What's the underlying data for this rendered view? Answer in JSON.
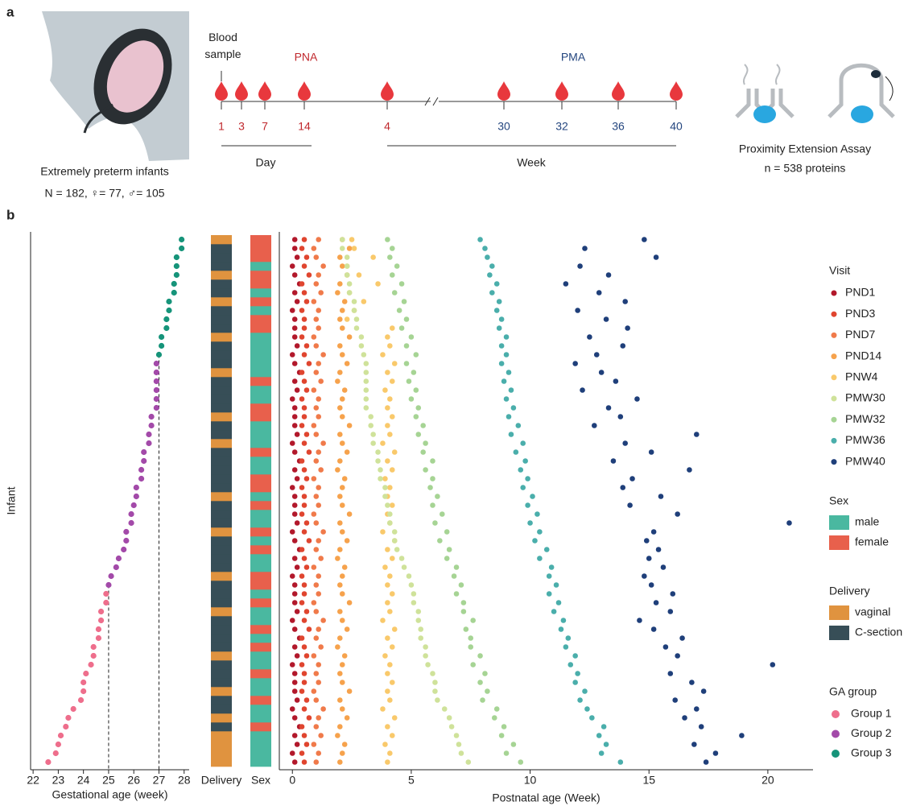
{
  "panels": {
    "a": {
      "label": "a",
      "infants": {
        "caption": "Extremely preterm infants",
        "counts": "N = 182, ♀= 77, ♂= 105"
      },
      "timeline": {
        "blood_sample": "Blood sample",
        "pna": "PNA",
        "pma": "PMA",
        "pna_points": [
          1,
          3,
          7,
          14,
          4
        ],
        "pma_points": [
          30,
          32,
          36,
          40
        ],
        "day": "Day",
        "week": "Week"
      },
      "assay": {
        "name": "Proximity Extension Assay",
        "count": "n = 538 proteins"
      }
    },
    "b": {
      "label": "b"
    }
  },
  "chart_data": [
    {
      "type": "dot-strip",
      "xlabel": "Gestational age (week)",
      "ylabel": "Infant",
      "xlim": [
        21.9,
        28.2
      ],
      "xticks": [
        22,
        23,
        24,
        25,
        26,
        27,
        28
      ],
      "reference_lines": [
        25,
        27
      ],
      "legend_title": "GA group",
      "groups": [
        {
          "name": "Group 1",
          "color": "#ee6e8c"
        },
        {
          "name": "Group 2",
          "color": "#a34aa9"
        },
        {
          "name": "Group 3",
          "color": "#16947a"
        }
      ],
      "x": [
        22.6,
        22.9,
        23.0,
        23.1,
        23.3,
        23.4,
        23.6,
        23.9,
        24.0,
        24.0,
        24.1,
        24.3,
        24.4,
        24.4,
        24.6,
        24.6,
        24.7,
        24.7,
        24.9,
        24.9,
        25.0,
        25.1,
        25.3,
        25.4,
        25.6,
        25.7,
        25.7,
        25.9,
        25.9,
        26.0,
        26.1,
        26.1,
        26.3,
        26.3,
        26.4,
        26.4,
        26.6,
        26.6,
        26.7,
        26.7,
        26.9,
        26.9,
        26.9,
        26.9,
        26.9,
        26.9,
        27.0,
        27.1,
        27.1,
        27.3,
        27.3,
        27.4,
        27.4,
        27.6,
        27.6,
        27.7,
        27.7,
        27.7,
        27.9,
        27.9
      ],
      "group": [
        "Group 1",
        "Group 1",
        "Group 1",
        "Group 1",
        "Group 1",
        "Group 1",
        "Group 1",
        "Group 1",
        "Group 1",
        "Group 1",
        "Group 1",
        "Group 1",
        "Group 1",
        "Group 1",
        "Group 1",
        "Group 1",
        "Group 1",
        "Group 1",
        "Group 1",
        "Group 1",
        "Group 2",
        "Group 2",
        "Group 2",
        "Group 2",
        "Group 2",
        "Group 2",
        "Group 2",
        "Group 2",
        "Group 2",
        "Group 2",
        "Group 2",
        "Group 2",
        "Group 2",
        "Group 2",
        "Group 2",
        "Group 2",
        "Group 2",
        "Group 2",
        "Group 2",
        "Group 2",
        "Group 2",
        "Group 2",
        "Group 2",
        "Group 2",
        "Group 2",
        "Group 2",
        "Group 3",
        "Group 3",
        "Group 3",
        "Group 3",
        "Group 3",
        "Group 3",
        "Group 3",
        "Group 3",
        "Group 3",
        "Group 3",
        "Group 3",
        "Group 3",
        "Group 3",
        "Group 3"
      ]
    },
    {
      "type": "tile",
      "title": "Delivery",
      "legend": [
        {
          "name": "vaginal",
          "color": "#e0933f"
        },
        {
          "name": "C-section",
          "color": "#374e57"
        }
      ],
      "values": [
        "vaginal",
        "vaginal",
        "vaginal",
        "vaginal",
        "C-section",
        "vaginal",
        "C-section",
        "C-section",
        "vaginal",
        "C-section",
        "C-section",
        "C-section",
        "vaginal",
        "C-section",
        "C-section",
        "C-section",
        "C-section",
        "vaginal",
        "C-section",
        "C-section",
        "C-section",
        "vaginal",
        "C-section",
        "C-section",
        "C-section",
        "C-section",
        "vaginal",
        "C-section",
        "C-section",
        "C-section",
        "vaginal",
        "C-section",
        "C-section",
        "C-section",
        "C-section",
        "C-section",
        "vaginal",
        "C-section",
        "C-section",
        "vaginal",
        "C-section",
        "C-section",
        "C-section",
        "C-section",
        "vaginal",
        "C-section",
        "C-section",
        "C-section",
        "vaginal",
        "C-section",
        "C-section",
        "C-section",
        "vaginal",
        "C-section",
        "C-section",
        "vaginal",
        "C-section",
        "C-section",
        "C-section",
        "vaginal"
      ]
    },
    {
      "type": "tile",
      "title": "Sex",
      "legend": [
        {
          "name": "male",
          "color": "#4ab8a0"
        },
        {
          "name": "female",
          "color": "#e8604c"
        }
      ],
      "values": [
        "male",
        "male",
        "male",
        "male",
        "female",
        "male",
        "male",
        "female",
        "male",
        "male",
        "female",
        "male",
        "male",
        "female",
        "male",
        "female",
        "male",
        "male",
        "female",
        "male",
        "female",
        "female",
        "male",
        "male",
        "female",
        "male",
        "female",
        "male",
        "male",
        "female",
        "male",
        "female",
        "female",
        "male",
        "male",
        "female",
        "male",
        "male",
        "male",
        "female",
        "female",
        "male",
        "male",
        "female",
        "male",
        "male",
        "male",
        "male",
        "male",
        "female",
        "female",
        "male",
        "female",
        "male",
        "female",
        "female",
        "male",
        "female",
        "female",
        "female"
      ]
    },
    {
      "type": "scatter",
      "xlabel": "Postnatal age (Week)",
      "xlim": [
        -0.55,
        21.9
      ],
      "xticks": [
        0,
        5,
        10,
        15,
        20
      ],
      "legend_title": "Visit",
      "series": [
        {
          "name": "PND1",
          "color": "#b2182b",
          "values": [
            0.1,
            0.0,
            0.2,
            0.1,
            0.3,
            0.1,
            0.0,
            0.2,
            0.1,
            0.1,
            0.1,
            0.0,
            0.2,
            0.1,
            0.3,
            0.1,
            0.0,
            0.2,
            0.1,
            0.1,
            0.1,
            0.0,
            0.2,
            0.1,
            0.3,
            0.1,
            0.0,
            0.2,
            0.1,
            0.1,
            0.1,
            0.0,
            0.2,
            0.1,
            0.3,
            0.1,
            0.0,
            0.2,
            0.1,
            0.1,
            0.1,
            0.0,
            0.2,
            0.1,
            0.3,
            0.1,
            0.0,
            0.2,
            0.1,
            0.1,
            0.1,
            0.0,
            0.2,
            0.1,
            0.3,
            0.1,
            0.0,
            0.2,
            0.1,
            0.1
          ]
        },
        {
          "name": "PND3",
          "color": "#e0452f",
          "values": [
            0.5,
            0.4,
            0.6,
            0.5,
            0.4,
            0.7,
            0.5,
            0.6,
            0.4,
            0.5,
            0.5,
            0.4,
            0.6,
            0.5,
            0.4,
            0.7,
            0.5,
            0.6,
            0.4,
            0.5,
            0.5,
            0.4,
            0.6,
            0.5,
            0.4,
            0.7,
            0.5,
            0.6,
            0.4,
            0.5,
            0.5,
            0.4,
            0.6,
            0.5,
            0.4,
            0.7,
            0.5,
            0.6,
            0.4,
            0.5,
            0.5,
            0.4,
            0.6,
            0.5,
            0.4,
            0.7,
            0.5,
            0.6,
            0.4,
            0.5,
            0.5,
            0.4,
            0.6,
            0.5,
            0.4,
            0.7,
            0.5,
            0.6,
            0.4,
            0.5
          ]
        },
        {
          "name": "PND7",
          "color": "#f07a4a",
          "values": [
            1.0,
            1.1,
            0.9,
            1.2,
            1.0,
            1.1,
            1.3,
            1.0,
            0.9,
            1.1,
            1.0,
            1.1,
            0.9,
            1.2,
            1.0,
            1.1,
            1.3,
            1.0,
            0.9,
            1.1,
            1.0,
            1.1,
            0.9,
            1.2,
            1.0,
            1.1,
            1.3,
            1.0,
            0.9,
            1.1,
            1.0,
            1.1,
            0.9,
            1.2,
            1.0,
            1.1,
            1.3,
            1.0,
            0.9,
            1.1,
            1.0,
            1.1,
            0.9,
            1.2,
            1.0,
            1.1,
            1.3,
            1.0,
            0.9,
            1.1,
            1.0,
            1.1,
            0.9,
            1.2,
            1.0,
            1.1,
            1.3,
            1.0,
            0.9,
            1.1
          ]
        },
        {
          "name": "PND14",
          "color": "#f6a24c",
          "values": [
            2.0,
            2.1,
            2.2,
            1.9,
            2.0,
            2.3,
            2.1,
            2.0,
            2.4,
            2.1,
            2.0,
            2.1,
            2.2,
            1.9,
            2.0,
            2.3,
            2.1,
            2.0,
            2.4,
            2.1,
            2.0,
            2.1,
            2.2,
            1.9,
            2.0,
            2.3,
            2.1,
            2.0,
            2.4,
            2.1,
            2.0,
            2.1,
            2.2,
            1.9,
            2.0,
            2.3,
            2.1,
            2.0,
            2.4,
            2.1,
            2.0,
            2.1,
            2.2,
            1.9,
            2.0,
            2.3,
            2.1,
            2.0,
            2.4,
            2.1,
            2.0,
            2.1,
            2.2,
            1.9,
            2.0,
            2.3,
            2.1,
            2.0,
            2.4,
            2.1
          ]
        },
        {
          "name": "PNW4",
          "color": "#f9c96b",
          "values": [
            4.0,
            4.1,
            3.9,
            4.2,
            4.0,
            4.3,
            3.8,
            4.1,
            4.0,
            4.2,
            4.0,
            4.1,
            3.9,
            4.2,
            4.0,
            4.3,
            3.8,
            4.1,
            4.0,
            4.2,
            4.0,
            4.1,
            3.9,
            4.2,
            4.0,
            4.3,
            3.8,
            4.1,
            4.0,
            4.2,
            4.0,
            4.1,
            3.9,
            4.2,
            4.0,
            4.3,
            3.8,
            4.1,
            4.0,
            4.2,
            4.0,
            4.1,
            3.9,
            4.2,
            4.0,
            4.3,
            3.8,
            4.1,
            4.0,
            4.2,
            2.3,
            2.6,
            3.0,
            2.4,
            3.6,
            2.8,
            2.3,
            3.4,
            2.6,
            2.5
          ]
        },
        {
          "name": "PMW30",
          "color": "#cfe29a",
          "values": [
            7.4,
            7.1,
            7.0,
            6.9,
            6.7,
            6.6,
            6.4,
            6.1,
            6.0,
            6.0,
            5.9,
            5.7,
            5.6,
            5.6,
            5.4,
            5.4,
            5.3,
            5.3,
            5.1,
            5.1,
            5.0,
            4.9,
            4.7,
            4.6,
            4.4,
            4.3,
            4.3,
            4.1,
            4.1,
            4.0,
            3.9,
            3.9,
            3.7,
            3.7,
            3.6,
            3.6,
            3.4,
            3.4,
            3.3,
            3.3,
            3.1,
            3.1,
            3.1,
            3.1,
            3.1,
            3.1,
            3.0,
            2.9,
            2.9,
            2.7,
            2.7,
            2.6,
            2.6,
            2.4,
            2.4,
            2.3,
            2.3,
            2.3,
            2.1,
            2.1
          ]
        },
        {
          "name": "PMW32",
          "color": "#a6d494",
          "values": [
            9.6,
            9.0,
            9.3,
            8.8,
            8.9,
            8.5,
            8.6,
            8.0,
            8.2,
            7.9,
            8.1,
            7.6,
            7.9,
            7.5,
            7.5,
            7.3,
            7.6,
            7.2,
            7.2,
            6.9,
            7.1,
            6.8,
            6.9,
            6.5,
            6.6,
            6.2,
            6.5,
            6.0,
            6.3,
            5.9,
            6.1,
            5.8,
            5.9,
            5.6,
            5.9,
            5.5,
            5.6,
            5.3,
            5.5,
            5.2,
            5.3,
            5.0,
            5.2,
            4.9,
            5.1,
            4.8,
            5.2,
            4.8,
            5.0,
            4.6,
            4.8,
            4.5,
            4.7,
            4.3,
            4.6,
            4.2,
            4.4,
            4.1,
            4.2,
            4.0
          ]
        },
        {
          "name": "PMW36",
          "color": "#4aaeab",
          "values": [
            13.8,
            13.0,
            13.2,
            12.9,
            13.1,
            12.6,
            12.4,
            12.1,
            12.3,
            11.9,
            12.0,
            11.7,
            11.9,
            11.5,
            11.6,
            11.3,
            11.4,
            11.0,
            11.2,
            10.8,
            11.1,
            10.8,
            10.9,
            10.4,
            10.7,
            10.2,
            10.4,
            10.0,
            10.3,
            9.9,
            10.1,
            9.7,
            9.9,
            9.6,
            9.8,
            9.4,
            9.7,
            9.2,
            9.5,
            9.1,
            9.3,
            9.0,
            9.2,
            8.9,
            9.1,
            8.8,
            9.0,
            8.8,
            9.0,
            8.7,
            8.8,
            8.6,
            8.7,
            8.4,
            8.6,
            8.3,
            8.4,
            8.2,
            8.1,
            7.9
          ]
        },
        {
          "name": "PMW40",
          "color": "#1f3f7a",
          "values": [
            17.4,
            17.8,
            16.9,
            18.9,
            17.2,
            16.5,
            17.0,
            16.1,
            17.3,
            16.8,
            15.9,
            20.2,
            16.2,
            15.7,
            16.4,
            15.2,
            14.6,
            15.9,
            15.3,
            16.0,
            15.1,
            14.8,
            15.6,
            15.0,
            15.4,
            14.9,
            15.2,
            20.9,
            16.2,
            14.2,
            15.5,
            13.9,
            14.3,
            16.7,
            13.5,
            15.1,
            14.0,
            17.0,
            12.7,
            13.8,
            13.3,
            14.5,
            12.2,
            13.6,
            13.0,
            11.9,
            12.8,
            13.9,
            12.5,
            14.1,
            13.2,
            12.0,
            14.0,
            12.9,
            11.5,
            13.3,
            12.1,
            15.3,
            12.3,
            14.8
          ]
        }
      ]
    }
  ]
}
